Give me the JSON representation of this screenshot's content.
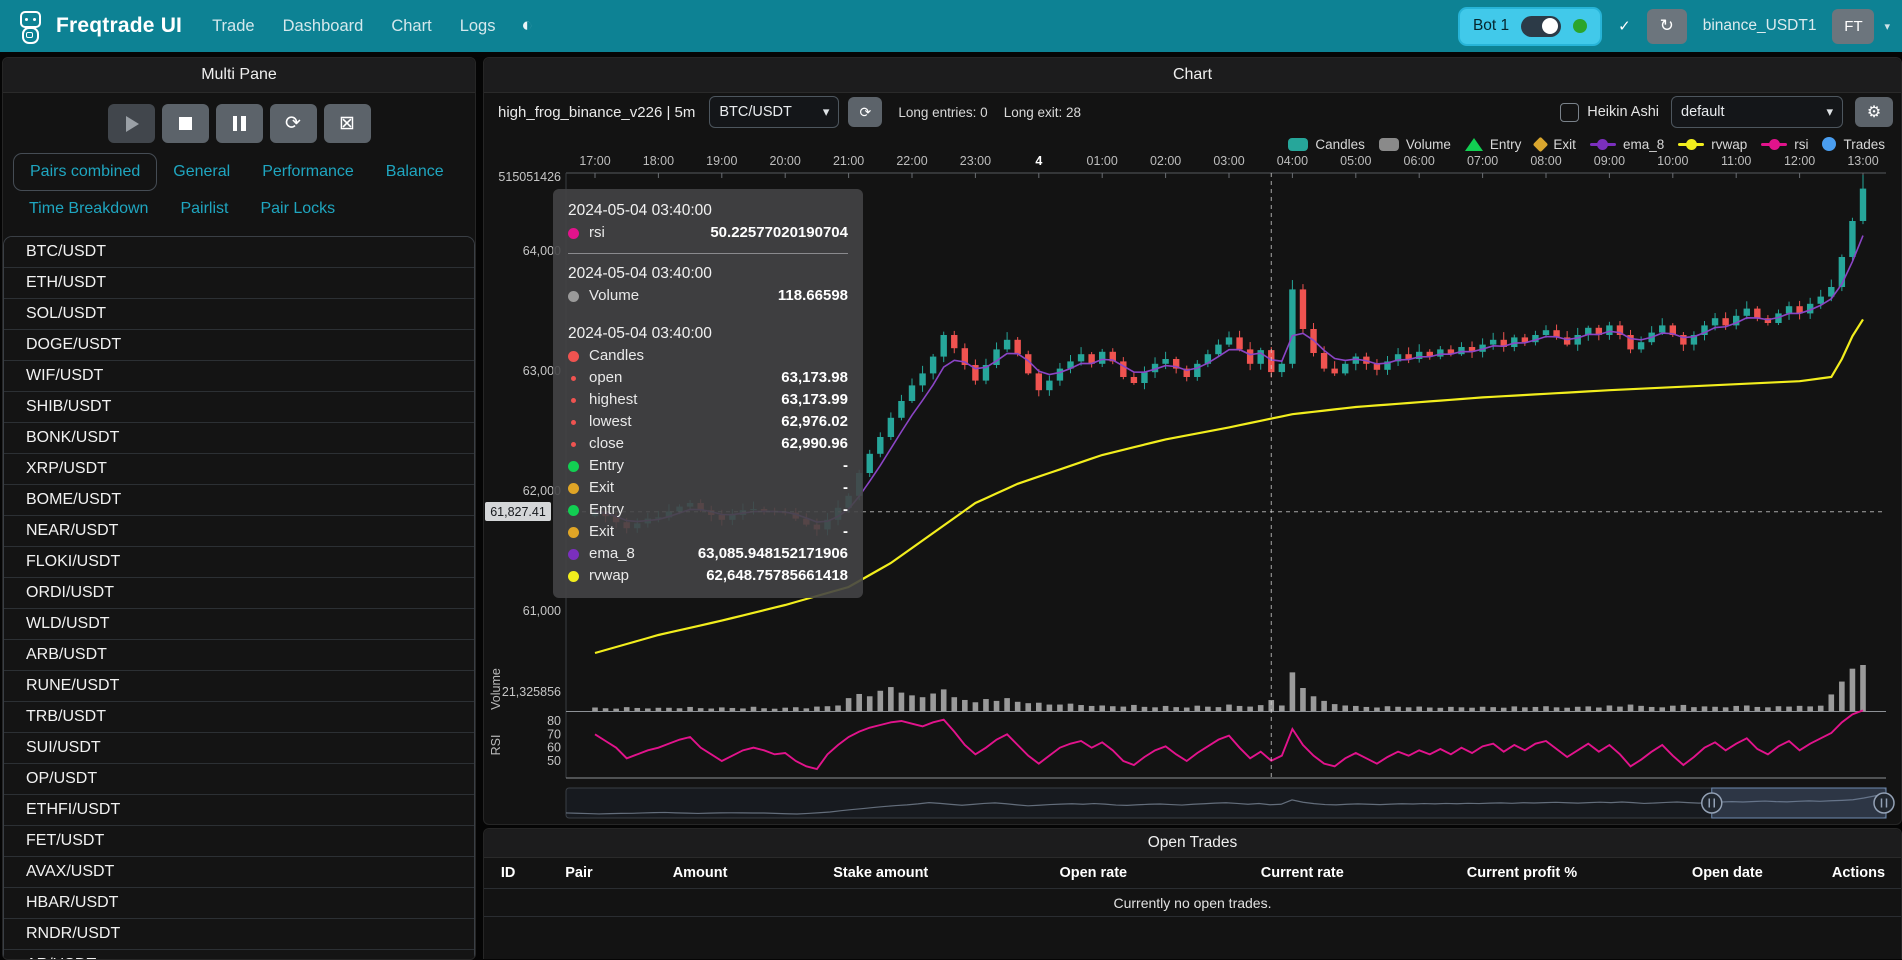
{
  "navbar": {
    "brand": "Freqtrade UI",
    "links": [
      "Trade",
      "Dashboard",
      "Chart",
      "Logs"
    ],
    "theme_icon": "moon-sun-toggle",
    "bot_label": "Bot 1",
    "login_name": "binance_USDT1",
    "avatar_initials": "FT",
    "accent_color": "#0d8294",
    "bot_pill_color": "#41c9ea",
    "online_color": "#2ba52b"
  },
  "multipane": {
    "title": "Multi Pane",
    "controls": [
      {
        "name": "play",
        "disabled": true
      },
      {
        "name": "stop",
        "disabled": false
      },
      {
        "name": "pause",
        "disabled": false
      },
      {
        "name": "refresh",
        "icon": "⟳",
        "disabled": false
      },
      {
        "name": "clear",
        "icon": "⊠",
        "disabled": false
      }
    ],
    "tabs_row1": [
      "Pairs combined",
      "General",
      "Performance",
      "Balance"
    ],
    "tabs_row2": [
      "Time Breakdown",
      "Pairlist",
      "Pair Locks"
    ],
    "active_tab": "Pairs combined",
    "pairs": [
      "BTC/USDT",
      "ETH/USDT",
      "SOL/USDT",
      "DOGE/USDT",
      "WIF/USDT",
      "SHIB/USDT",
      "BONK/USDT",
      "XRP/USDT",
      "BOME/USDT",
      "NEAR/USDT",
      "FLOKI/USDT",
      "ORDI/USDT",
      "WLD/USDT",
      "ARB/USDT",
      "RUNE/USDT",
      "TRB/USDT",
      "SUI/USDT",
      "OP/USDT",
      "ETHFI/USDT",
      "FET/USDT",
      "AVAX/USDT",
      "HBAR/USDT",
      "RNDR/USDT",
      "AR/USDT"
    ]
  },
  "chart": {
    "panel_title": "Chart",
    "strategy_label": "high_frog_binance_v226 | 5m",
    "pair_select_value": "BTC/USDT",
    "entries_summary": "Long entries: 0",
    "exits_summary": "Long exit: 28",
    "heikin_ashi_label": "Heikin Ashi",
    "heikin_ashi_checked": false,
    "plot_config_value": "default",
    "legend": [
      {
        "label": "Candles",
        "type": "rect",
        "color": "#26a69a"
      },
      {
        "label": "Volume",
        "type": "rect",
        "color": "#8a8a8a"
      },
      {
        "label": "Entry",
        "type": "triangle",
        "color": "#12cf52"
      },
      {
        "label": "Exit",
        "type": "diamond",
        "color": "#d9a62e"
      },
      {
        "label": "ema_8",
        "type": "line",
        "color": "#7b2fbe"
      },
      {
        "label": "rvwap",
        "type": "line",
        "color": "#f2ee1d"
      },
      {
        "label": "rsi",
        "type": "line",
        "color": "#e2138c"
      },
      {
        "label": "Trades",
        "type": "circle",
        "color": "#4a9ef0"
      }
    ],
    "axis_pointer": {
      "label": "61,827.41",
      "value": 61827.41
    },
    "tooltip": {
      "groups": [
        {
          "date": "2024-05-04 03:40:00",
          "divider": true,
          "rows": [
            {
              "dot": "#e2138c",
              "label": "rsi",
              "value": "50.22577020190704"
            }
          ]
        },
        {
          "date": "2024-05-04 03:40:00",
          "divider": false,
          "rows": [
            {
              "dot": "#9a9a9a",
              "label": "Volume",
              "value": "118.66598"
            }
          ]
        },
        {
          "date": "2024-05-04 03:40:00",
          "divider": false,
          "rows": [
            {
              "dot": "#ef5350",
              "label": "Candles",
              "value": ""
            },
            {
              "dot": "#ef5350",
              "small": true,
              "label": "open",
              "value": "63,173.98"
            },
            {
              "dot": "#ef5350",
              "small": true,
              "label": "highest",
              "value": "63,173.99"
            },
            {
              "dot": "#ef5350",
              "small": true,
              "label": "lowest",
              "value": "62,976.02"
            },
            {
              "dot": "#ef5350",
              "small": true,
              "label": "close",
              "value": "62,990.96"
            },
            {
              "dot": "#12cf52",
              "label": "Entry",
              "value": "-"
            },
            {
              "dot": "#e0a526",
              "label": "Exit",
              "value": "-"
            },
            {
              "dot": "#12cf52",
              "label": "Entry",
              "value": "-"
            },
            {
              "dot": "#e0a526",
              "label": "Exit",
              "value": "-"
            },
            {
              "dot": "#7b2fbe",
              "label": "ema_8",
              "value": "63,085.948152171906"
            },
            {
              "dot": "#f2ee1d",
              "label": "rvwap",
              "value": "62,648.75785661418"
            }
          ]
        }
      ]
    }
  },
  "open_trades": {
    "title": "Open Trades",
    "columns": [
      "ID",
      "Pair",
      "Amount",
      "Stake amount",
      "Open rate",
      "Current rate",
      "Current profit %",
      "Open date",
      "Actions"
    ],
    "empty_message": "Currently no open trades."
  },
  "chart_data": {
    "type": "candlestick",
    "title": "high_frog_binance_v226 | 5m BTC/USDT",
    "timeframe_minutes_per_point": 10,
    "time_labels": [
      "17:00",
      "18:00",
      "19:00",
      "20:00",
      "21:00",
      "22:00",
      "23:00",
      "4",
      "01:00",
      "02:00",
      "03:00",
      "04:00",
      "05:00",
      "06:00",
      "07:00",
      "08:00",
      "09:00",
      "10:00",
      "11:00",
      "12:00",
      "13:00"
    ],
    "emphasized_time_label": "4",
    "price_ticks": [
      {
        "value": 64617,
        "label": "515051426"
      },
      {
        "value": 64000,
        "label": "64,000"
      },
      {
        "value": 63000,
        "label": "63,000"
      },
      {
        "value": 62000,
        "label": "62,000"
      },
      {
        "value": 61000,
        "label": "61,000"
      }
    ],
    "volume_axis_label": "21,325856",
    "volume_title": "Volume",
    "rsi_title": "RSI",
    "rsi_ticks": [
      80,
      70,
      60,
      50
    ],
    "crosshair": {
      "index": 64,
      "price": 61827.41,
      "time": "2024-05-04 03:40:00"
    },
    "datazoom": {
      "selection_start_fraction": 0.868,
      "selection_end_fraction": 1.0
    },
    "colors": {
      "up": "#26a69a",
      "down": "#ef5350",
      "ema": "#8b45c6",
      "rvwap": "#f2ee1d",
      "rsi": "#e2138c",
      "volume": "#9a9a9a"
    },
    "series": {
      "close": [
        61830,
        61790,
        61740,
        61690,
        61730,
        61770,
        61780,
        61830,
        61870,
        61900,
        61840,
        61800,
        61760,
        61800,
        61840,
        61850,
        61835,
        61825,
        61820,
        61770,
        61720,
        61680,
        61760,
        61860,
        61960,
        62150,
        62310,
        62450,
        62610,
        62750,
        62880,
        62980,
        63120,
        63300,
        63190,
        63050,
        62920,
        63050,
        63180,
        63260,
        63140,
        62980,
        62840,
        62920,
        63020,
        63080,
        63140,
        63060,
        63160,
        63080,
        62950,
        62900,
        62990,
        63060,
        63100,
        63020,
        62950,
        63060,
        63140,
        63220,
        63280,
        63180,
        63060,
        63174,
        62991,
        63060,
        63680,
        63350,
        63150,
        63020,
        62980,
        63060,
        63120,
        63060,
        63010,
        63080,
        63140,
        63100,
        63160,
        63120,
        63180,
        63140,
        63200,
        63160,
        63220,
        63260,
        63200,
        63280,
        63240,
        63300,
        63340,
        63280,
        63220,
        63300,
        63360,
        63300,
        63380,
        63300,
        63180,
        63240,
        63320,
        63380,
        63300,
        63220,
        63300,
        63380,
        63440,
        63380,
        63460,
        63520,
        63440,
        63400,
        63480,
        63540,
        63480,
        63560,
        63620,
        63700,
        63950,
        64250,
        64520
      ],
      "volume": [
        38,
        30,
        26,
        42,
        33,
        28,
        35,
        35,
        30,
        44,
        31,
        27,
        39,
        33,
        28,
        46,
        30,
        25,
        36,
        41,
        29,
        48,
        52,
        60,
        140,
        185,
        160,
        220,
        260,
        200,
        170,
        150,
        190,
        235,
        150,
        120,
        95,
        130,
        110,
        140,
        100,
        85,
        90,
        70,
        70,
        80,
        65,
        55,
        60,
        52,
        48,
        66,
        45,
        40,
        55,
        42,
        38,
        58,
        47,
        42,
        70,
        55,
        48,
        64,
        119,
        60,
        420,
        250,
        160,
        110,
        75,
        60,
        55,
        44,
        38,
        52,
        46,
        40,
        48,
        38,
        35,
        45,
        40,
        36,
        46,
        42,
        36,
        50,
        40,
        44,
        52,
        40,
        36,
        46,
        50,
        38,
        60,
        48,
        70,
        56,
        44,
        40,
        58,
        66,
        42,
        50,
        46,
        40,
        55,
        60,
        44,
        40,
        52,
        48,
        56,
        50,
        58,
        180,
        320,
        460,
        500
      ],
      "rsi": [
        70,
        65,
        60,
        52,
        55,
        58,
        60,
        63,
        66,
        68,
        60,
        55,
        50,
        54,
        58,
        60,
        58,
        55,
        56,
        50,
        46,
        44,
        55,
        62,
        68,
        72,
        75,
        77,
        79,
        80,
        78,
        76,
        79,
        81,
        72,
        62,
        55,
        60,
        66,
        70,
        62,
        54,
        48,
        54,
        60,
        63,
        65,
        60,
        64,
        58,
        50,
        47,
        53,
        58,
        61,
        55,
        50,
        56,
        61,
        66,
        69,
        60,
        52,
        57,
        50.2,
        54,
        74,
        62,
        54,
        48,
        46,
        52,
        56,
        52,
        48,
        53,
        57,
        54,
        58,
        55,
        59,
        55,
        60,
        56,
        61,
        63,
        57,
        62,
        58,
        63,
        65,
        59,
        53,
        58,
        63,
        57,
        62,
        55,
        46,
        51,
        57,
        62,
        54,
        47,
        53,
        60,
        64,
        58,
        63,
        67,
        59,
        55,
        61,
        65,
        58,
        63,
        67,
        71,
        79,
        85,
        88
      ],
      "rvwap_anchors": [
        [
          0,
          60650
        ],
        [
          6,
          60800
        ],
        [
          12,
          60920
        ],
        [
          18,
          61050
        ],
        [
          24,
          61200
        ],
        [
          28,
          61400
        ],
        [
          32,
          61650
        ],
        [
          36,
          61900
        ],
        [
          40,
          62060
        ],
        [
          44,
          62180
        ],
        [
          48,
          62300
        ],
        [
          54,
          62430
        ],
        [
          60,
          62530
        ],
        [
          66,
          62640
        ],
        [
          72,
          62700
        ],
        [
          78,
          62740
        ],
        [
          84,
          62780
        ],
        [
          90,
          62810
        ],
        [
          96,
          62840
        ],
        [
          102,
          62865
        ],
        [
          108,
          62890
        ],
        [
          114,
          62915
        ],
        [
          117,
          62950
        ],
        [
          118,
          63100
        ],
        [
          119,
          63290
        ],
        [
          120,
          63430
        ]
      ],
      "ema_period": 8
    }
  }
}
